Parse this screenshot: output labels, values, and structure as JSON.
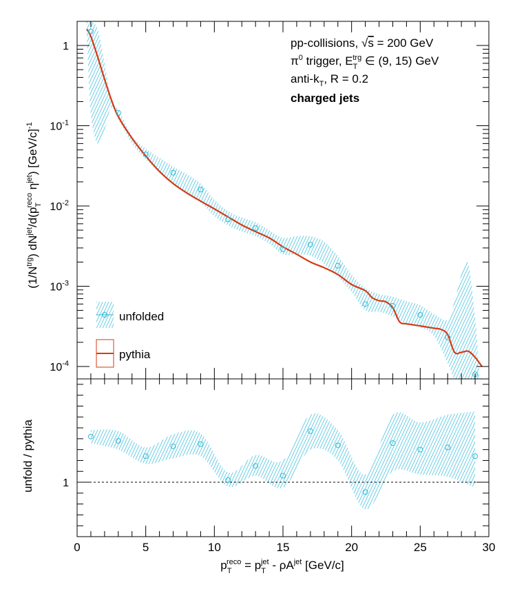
{
  "chart_data": [
    {
      "type": "line",
      "panel": "top",
      "yscale": "log",
      "ylim": [
        7e-05,
        2.0
      ],
      "xlim": [
        0,
        30
      ],
      "ylabel": "(1/Ntrg) dNjet/d(pTreco ηjet) [GeV/c]-1",
      "y_tick_labels": [
        "10-4",
        "10-3",
        "10-2",
        "10-1",
        "1"
      ],
      "annotations": [
        "pp-collisions, √s = 200 GeV",
        "π0 trigger, ETtrg ∈ (9, 15) GeV",
        "anti-kT, R = 0.2",
        "charged jets"
      ],
      "legend": {
        "placement": "bottom-left",
        "entries": [
          {
            "label": "unfolded",
            "color": "#2bb8d8"
          },
          {
            "label": "pythia",
            "color": "#d63a12"
          }
        ]
      },
      "series": [
        {
          "name": "unfolded",
          "style": "points-with-band",
          "color": "#2bb8d8",
          "x": [
            1,
            3,
            5,
            7,
            9,
            11,
            13,
            15,
            17,
            19,
            21,
            23,
            25,
            27,
            29
          ],
          "y": [
            1.5,
            0.145,
            0.044,
            0.026,
            0.016,
            0.0068,
            0.0053,
            0.0029,
            0.0033,
            0.0018,
            0.0006,
            0.00057,
            0.00044,
            0.00023,
            8e-05
          ],
          "band_x": [
            0.7,
            1,
            1.5,
            2,
            2.5,
            3,
            4,
            5,
            6,
            7,
            8,
            9,
            10,
            11,
            12,
            13,
            14,
            15,
            16,
            17,
            18,
            19,
            20,
            21,
            22,
            23,
            24,
            25,
            26,
            27,
            27.5,
            28,
            28.5,
            29,
            29.3
          ],
          "band_low": [
            1.4,
            0.14,
            0.06,
            0.09,
            0.17,
            0.12,
            0.06,
            0.038,
            0.026,
            0.019,
            0.014,
            0.011,
            0.0075,
            0.0057,
            0.0048,
            0.0042,
            0.0034,
            0.0025,
            0.0025,
            0.0024,
            0.0019,
            0.0013,
            0.00085,
            0.0005,
            0.00048,
            0.00042,
            0.00034,
            0.00031,
            0.00024,
            0.00011,
            7e-05,
            7e-05,
            7e-05,
            7e-05,
            7e-05
          ],
          "band_high": [
            2.0,
            2.0,
            1.6,
            0.6,
            0.2,
            0.16,
            0.075,
            0.052,
            0.04,
            0.031,
            0.025,
            0.019,
            0.012,
            0.0086,
            0.0072,
            0.0063,
            0.005,
            0.004,
            0.0042,
            0.0042,
            0.0036,
            0.0024,
            0.0014,
            0.00095,
            0.0008,
            0.00074,
            0.00065,
            0.00058,
            0.00045,
            0.00038,
            0.00065,
            0.0014,
            0.0019,
            0.0004,
            9e-05
          ]
        },
        {
          "name": "pythia",
          "style": "line",
          "color": "#d63a12",
          "x": [
            0.7,
            1,
            1.5,
            2,
            2.5,
            3,
            4,
            5,
            6,
            7,
            8,
            9,
            10,
            11,
            12,
            13,
            14,
            15,
            16,
            17,
            18,
            19,
            20,
            21,
            21.5,
            22,
            22.5,
            23,
            23.5,
            24,
            25,
            26,
            26.5,
            27,
            27.5,
            28,
            28.5,
            29,
            29.5
          ],
          "y": [
            1.6,
            1.3,
            0.72,
            0.38,
            0.21,
            0.13,
            0.07,
            0.042,
            0.027,
            0.019,
            0.0145,
            0.0115,
            0.0092,
            0.0073,
            0.0058,
            0.0048,
            0.004,
            0.0031,
            0.0025,
            0.002,
            0.0017,
            0.0014,
            0.00105,
            0.00088,
            0.00072,
            0.00066,
            0.00064,
            0.00054,
            0.00036,
            0.00034,
            0.00032,
            0.0003,
            0.00029,
            0.00025,
            0.00015,
            0.00015,
            0.000155,
            0.00013,
            0.0001
          ]
        }
      ]
    },
    {
      "type": "line",
      "panel": "bottom",
      "xlim": [
        0,
        30
      ],
      "ylim": [
        0.5,
        1.95
      ],
      "xlabel": "pTreco = pTjet - ρAjet [GeV/c]",
      "ylabel": "unfold / pythia",
      "x_tick_labels": [
        "0",
        "5",
        "10",
        "15",
        "20",
        "25",
        "30"
      ],
      "y_tick_labels": [
        "1"
      ],
      "reference_line": 1.0,
      "series": [
        {
          "name": "unfold / pythia",
          "style": "points-with-band",
          "color": "#2bb8d8",
          "x": [
            1,
            3,
            5,
            7,
            9,
            11,
            13,
            15,
            17,
            19,
            21,
            23,
            25,
            27,
            29
          ],
          "y": [
            1.42,
            1.38,
            1.24,
            1.33,
            1.35,
            1.02,
            1.15,
            1.06,
            1.47,
            1.34,
            0.91,
            1.36,
            1.3,
            1.32,
            1.24
          ],
          "band_x": [
            1,
            3,
            5,
            7,
            9,
            11,
            13,
            15,
            17,
            19,
            21,
            23,
            25,
            27,
            29
          ],
          "band_low": [
            1.36,
            1.3,
            1.17,
            1.22,
            1.24,
            0.96,
            1.06,
            0.95,
            1.3,
            1.2,
            0.75,
            1.1,
            1.07,
            1.05,
            0.95
          ],
          "band_high": [
            1.48,
            1.47,
            1.32,
            1.44,
            1.45,
            1.09,
            1.25,
            1.2,
            1.62,
            1.48,
            1.07,
            1.62,
            1.55,
            1.62,
            1.65
          ]
        }
      ]
    }
  ]
}
